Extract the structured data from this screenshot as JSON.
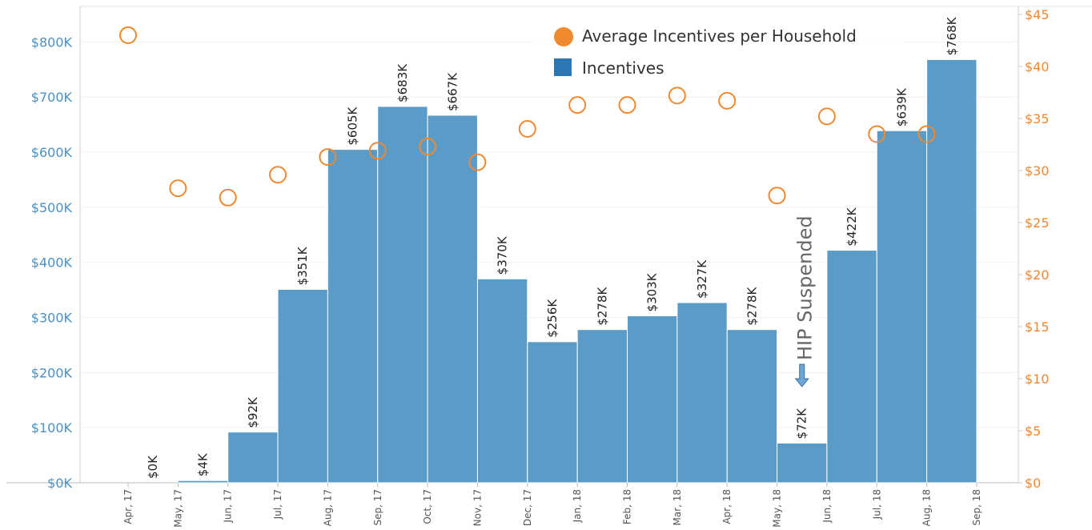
{
  "chart_data": {
    "type": "bar",
    "x_ticks": [
      "Apr, 17",
      "May, 17",
      "Jun, 17",
      "Jul, 17",
      "Aug, 17",
      "Sep, 17",
      "Oct, 17",
      "Nov, 17",
      "Dec, 17",
      "Jan, 18",
      "Feb, 18",
      "Mar, 18",
      "Apr, 18",
      "May, 18",
      "Jun, 18",
      "Jul, 18",
      "Aug, 18",
      "Sep, 18"
    ],
    "left_axis": {
      "ylim": [
        0,
        850000
      ],
      "ticks": [
        0,
        100000,
        200000,
        300000,
        400000,
        500000,
        600000,
        700000,
        800000
      ],
      "tick_labels": [
        "$0K",
        "$100K",
        "$200K",
        "$300K",
        "$400K",
        "$500K",
        "$600K",
        "$700K",
        "$800K"
      ],
      "color": "#4a90c2"
    },
    "right_axis": {
      "ylim": [
        0,
        45
      ],
      "ticks": [
        0,
        5,
        10,
        15,
        20,
        25,
        30,
        35,
        40,
        45
      ],
      "tick_labels": [
        "$0",
        "$5",
        "$10",
        "$15",
        "$20",
        "$25",
        "$30",
        "$35",
        "$40",
        "$45"
      ],
      "color": "#f0882e"
    },
    "series": [
      {
        "name": "Incentives",
        "type": "bar",
        "axis": "left",
        "color": "#5b9bc8",
        "values": [
          0,
          4000,
          92000,
          351000,
          605000,
          683000,
          667000,
          370000,
          256000,
          278000,
          303000,
          327000,
          278000,
          72000,
          422000,
          639000,
          768000
        ],
        "labels": [
          "$0K",
          "$4K",
          "$92K",
          "$351K",
          "$605K",
          "$683K",
          "$667K",
          "$370K",
          "$256K",
          "$278K",
          "$303K",
          "$327K",
          "$278K",
          "$72K",
          "$422K",
          "$639K",
          "$768K"
        ]
      },
      {
        "name": "Average  Incentives per Household",
        "type": "scatter",
        "axis": "right",
        "color": "#f0882e",
        "values": [
          43.0,
          28.3,
          27.4,
          29.6,
          31.3,
          31.9,
          32.3,
          30.8,
          34.0,
          36.3,
          36.3,
          37.2,
          36.7,
          27.6,
          35.2,
          33.5,
          33.5
        ]
      }
    ],
    "legend": {
      "position": "top-right",
      "items": [
        {
          "label": "Average  Incentives per Household",
          "marker": "circle",
          "color": "#f0882e"
        },
        {
          "label": "Incentives",
          "marker": "square",
          "color": "#2b78b5"
        }
      ]
    },
    "annotation": {
      "text": "HIP Suspended",
      "arrow": "down",
      "near_category": "May, 18"
    },
    "grid": true
  }
}
